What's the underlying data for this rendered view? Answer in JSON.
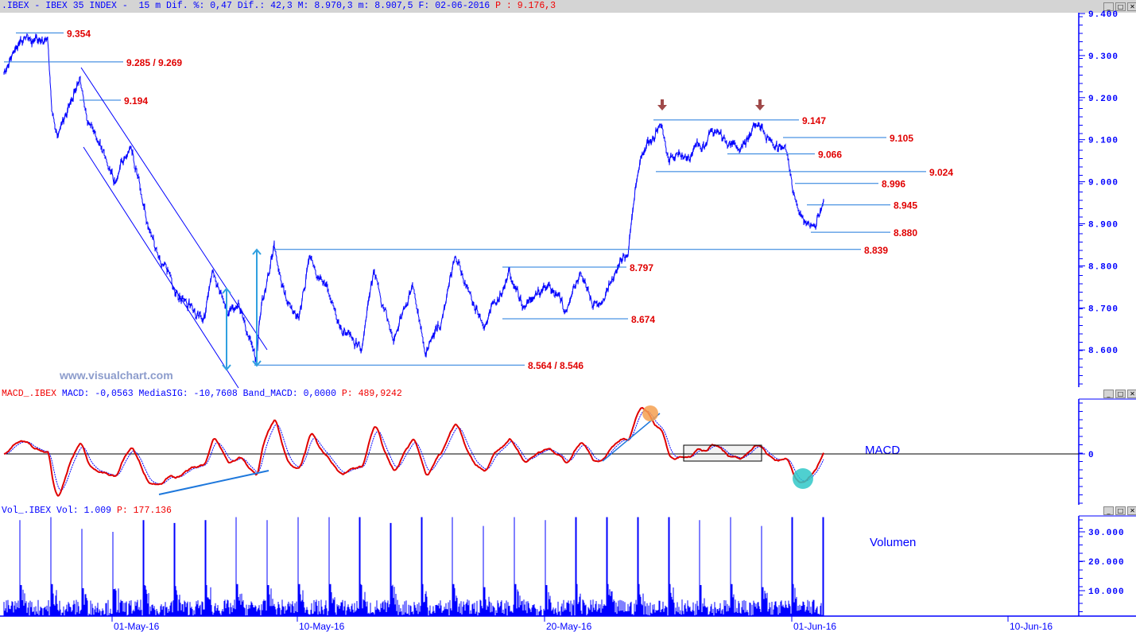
{
  "header": {
    "info": ".IBEX - IBEX 35 INDEX -  15 m Dif. %: 0,47 Dif.: 42,3 M: 8.970,3 m: 8.907,5 F: 02-06-2016",
    "last": "P : 9.176,3"
  },
  "macd_header": {
    "name": "MACD_.IBEX",
    "values": " MACD: -0,0563 MediaSIG: -10,7608 Band_MACD: 0,0000",
    "p": " P: 489,9242"
  },
  "vol_header": {
    "name": "Vol_.IBEX",
    "values": " Vol: 1.009",
    "p": " P: 177.136"
  },
  "window_buttons": [
    "minimize",
    "maximize",
    "close"
  ],
  "watermark": "www.visualchart.com",
  "colors": {
    "price": "#0000ff",
    "level_line": "#1e78dc",
    "level_label": "#e00000",
    "macd": "#e00000",
    "signal": "#0000ff",
    "volume": "#0000ff",
    "arrow": "#a04a4a",
    "orange_marker": "#f5a050",
    "teal_marker": "#30c8c8"
  },
  "chart_data": {
    "type": "line",
    "price": {
      "yticks": [
        "9.400",
        "9.300",
        "9.200",
        "9.100",
        "9.000",
        "8.900",
        "8.800",
        "8.700",
        "8.600"
      ],
      "ytick_values": [
        9400,
        9300,
        9200,
        9100,
        9000,
        8900,
        8800,
        8700,
        8600
      ],
      "xticks": [
        "01-May-16",
        "10-May-16",
        "20-May-16",
        "01-Jun-16",
        "10-Jun-16"
      ],
      "trading_days": [
        "04-26",
        "04-27",
        "04-28",
        "04-29",
        "05-02",
        "05-03",
        "05-04",
        "05-05",
        "05-06",
        "05-09",
        "05-10",
        "05-11",
        "05-12",
        "05-13",
        "05-16",
        "05-17",
        "05-18",
        "05-19",
        "05-20",
        "05-23",
        "05-24",
        "05-25",
        "05-26",
        "05-27",
        "05-30",
        "05-31",
        "06-01",
        "06-02"
      ],
      "keypoints": [
        [
          "04-26",
          13.2,
          9260
        ],
        [
          "04-27",
          9.1,
          9330
        ],
        [
          "04-27",
          16.8,
          9340
        ],
        [
          "04-28",
          9.4,
          9180
        ],
        [
          "04-28",
          10.9,
          9100
        ],
        [
          "04-28",
          17.0,
          9250
        ],
        [
          "04-29",
          9.6,
          9180
        ],
        [
          "05-02",
          9.9,
          9000
        ],
        [
          "05-02",
          14.2,
          9080
        ],
        [
          "05-03",
          10.1,
          8900
        ],
        [
          "05-03",
          14.5,
          8800
        ],
        [
          "05-04",
          11.5,
          8720
        ],
        [
          "05-04",
          16.9,
          8680
        ],
        [
          "05-05",
          11.3,
          8780
        ],
        [
          "05-05",
          15.0,
          8680
        ],
        [
          "05-06",
          9.8,
          8700
        ],
        [
          "05-06",
          14.6,
          8580
        ],
        [
          "05-06",
          15.9,
          8700
        ],
        [
          "05-09",
          11.1,
          8840
        ],
        [
          "05-09",
          14.4,
          8720
        ],
        [
          "05-10",
          9.2,
          8660
        ],
        [
          "05-10",
          12.5,
          8830
        ],
        [
          "05-10",
          16.9,
          8740
        ],
        [
          "05-11",
          12.7,
          8660
        ],
        [
          "05-12",
          9.7,
          8600
        ],
        [
          "05-12",
          13.0,
          8780
        ],
        [
          "05-13",
          9.9,
          8620
        ],
        [
          "05-13",
          15.4,
          8760
        ],
        [
          "05-16",
          10.2,
          8600
        ],
        [
          "05-16",
          14.6,
          8660
        ],
        [
          "05-17",
          9.8,
          8820
        ],
        [
          "05-17",
          13.7,
          8730
        ],
        [
          "05-18",
          9.6,
          8660
        ],
        [
          "05-18",
          16.2,
          8780
        ],
        [
          "05-19",
          12.0,
          8700
        ],
        [
          "05-20",
          10.1,
          8760
        ],
        [
          "05-20",
          14.5,
          8700
        ],
        [
          "05-23",
          10.3,
          8780
        ],
        [
          "05-23",
          13.6,
          8700
        ],
        [
          "05-23",
          17.3,
          8720
        ],
        [
          "05-24",
          11.7,
          8800
        ],
        [
          "05-24",
          15.0,
          8840
        ],
        [
          "05-24",
          17.2,
          9000
        ],
        [
          "05-25",
          9.7,
          9060
        ],
        [
          "05-25",
          15.2,
          9140
        ],
        [
          "05-26",
          9.3,
          9050
        ],
        [
          "05-26",
          15.5,
          9070
        ],
        [
          "05-27",
          13.5,
          9120
        ],
        [
          "05-30",
          11.6,
          9080
        ],
        [
          "05-30",
          17.1,
          9140
        ],
        [
          "05-31",
          12.9,
          9080
        ],
        [
          "05-31",
          16.2,
          9080
        ],
        [
          "06-01",
          9.2,
          8970
        ],
        [
          "06-01",
          11.0,
          8920
        ],
        [
          "06-01",
          14.3,
          8890
        ],
        [
          "06-01",
          16.5,
          8920
        ],
        [
          "06-02",
          9.3,
          8960
        ]
      ],
      "levels": [
        {
          "value": 9354,
          "label": "9.354"
        },
        {
          "value": 9285,
          "label": "9.285 / 9.269"
        },
        {
          "value": 9194,
          "label": "9.194"
        },
        {
          "value": 9147,
          "label": "9.147"
        },
        {
          "value": 9105,
          "label": "9.105"
        },
        {
          "value": 9066,
          "label": "9.066"
        },
        {
          "value": 9024,
          "label": "9.024"
        },
        {
          "value": 8996,
          "label": "8.996"
        },
        {
          "value": 8945,
          "label": "8.945"
        },
        {
          "value": 8880,
          "label": "8.880"
        },
        {
          "value": 8839,
          "label": "8.839"
        },
        {
          "value": 8797,
          "label": "8.797"
        },
        {
          "value": 8674,
          "label": "8.674"
        },
        {
          "value": 8564,
          "label": "8.564 / 8.546"
        }
      ]
    },
    "macd": {
      "label": "MACD",
      "yticks": [
        "0"
      ],
      "fast": 12,
      "slow": 26,
      "signal": 9
    },
    "volume": {
      "label": "Volumen",
      "yticks": [
        "30.000",
        "20.000",
        "10.000"
      ],
      "ytick_values": [
        30000,
        20000,
        10000
      ],
      "open_spikes": [
        34000,
        35000,
        31000,
        30000,
        34000,
        33000,
        34000,
        35000,
        34000,
        35000,
        35000,
        35000,
        33000,
        35000,
        35000,
        32000,
        35000,
        34000,
        35000,
        35000,
        35000,
        35000,
        34000,
        35000,
        32000,
        35000,
        35000
      ]
    }
  }
}
